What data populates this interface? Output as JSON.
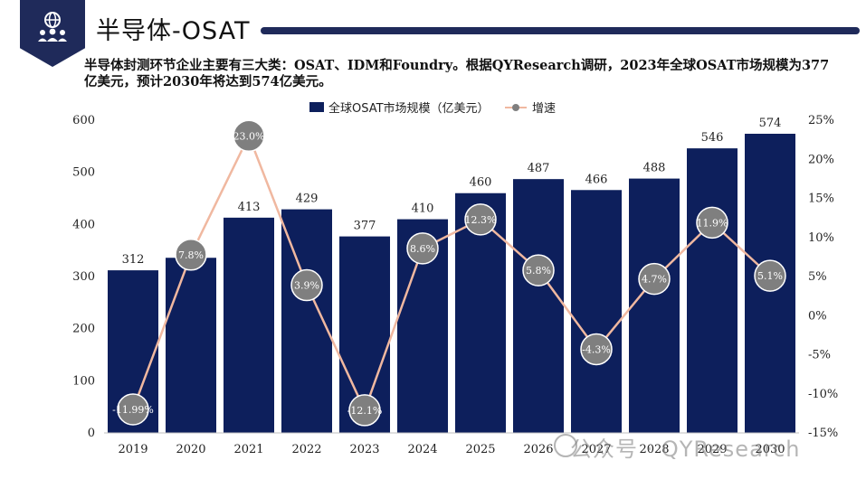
{
  "header": {
    "title": "半导体-OSAT",
    "intro": "半导体封测环节企业主要有三大类：OSAT、IDM和Foundry。根据QYResearch调研，2023年全球OSAT市场规模为377亿美元，预计2030年将达到574亿美元。"
  },
  "watermark": "公众号 · QYResearch",
  "colors": {
    "bar": "#0d1f5c",
    "line": "#f0b8a0",
    "marker": "#7f7f7f",
    "header": "#1f2a5a"
  },
  "icons": {
    "logo": "team-globe-icon"
  },
  "chart_data": {
    "type": "bar+line",
    "categories": [
      "2019",
      "2020",
      "2021",
      "2022",
      "2023",
      "2024",
      "2025",
      "2026",
      "2027",
      "2028",
      "2029",
      "2030"
    ],
    "series": [
      {
        "name": "全球OSAT市场规模（亿美元）",
        "type": "bar",
        "axis": "left",
        "values": [
          312,
          336,
          413,
          429,
          377,
          410,
          460,
          487,
          466,
          488,
          546,
          574
        ],
        "labels": [
          "312",
          "336",
          "413",
          "429",
          "377",
          "410",
          "460",
          "487",
          "466",
          "488",
          "546",
          "574"
        ]
      },
      {
        "name": "增速",
        "type": "line",
        "axis": "right",
        "values": [
          -11.99,
          7.8,
          23.0,
          3.9,
          -12.1,
          8.6,
          12.3,
          5.8,
          -4.3,
          4.7,
          11.9,
          5.1
        ],
        "labels": [
          "-11.99%",
          "7.8%",
          "23.0%",
          "3.9%",
          "-12.1%",
          "8.6%",
          "12.3%",
          "5.8%",
          "-4.3%",
          "4.7%",
          "11.9%",
          "5.1%"
        ]
      }
    ],
    "y_left": {
      "min": 0,
      "max": 600,
      "ticks": [
        "0",
        "100",
        "200",
        "300",
        "400",
        "500",
        "600"
      ]
    },
    "y_right": {
      "min": -15,
      "max": 25,
      "ticks": [
        "-15%",
        "-10%",
        "-5%",
        "0%",
        "5%",
        "10%",
        "15%",
        "20%",
        "25%"
      ]
    },
    "legend_position": "top-center",
    "grid": false
  }
}
